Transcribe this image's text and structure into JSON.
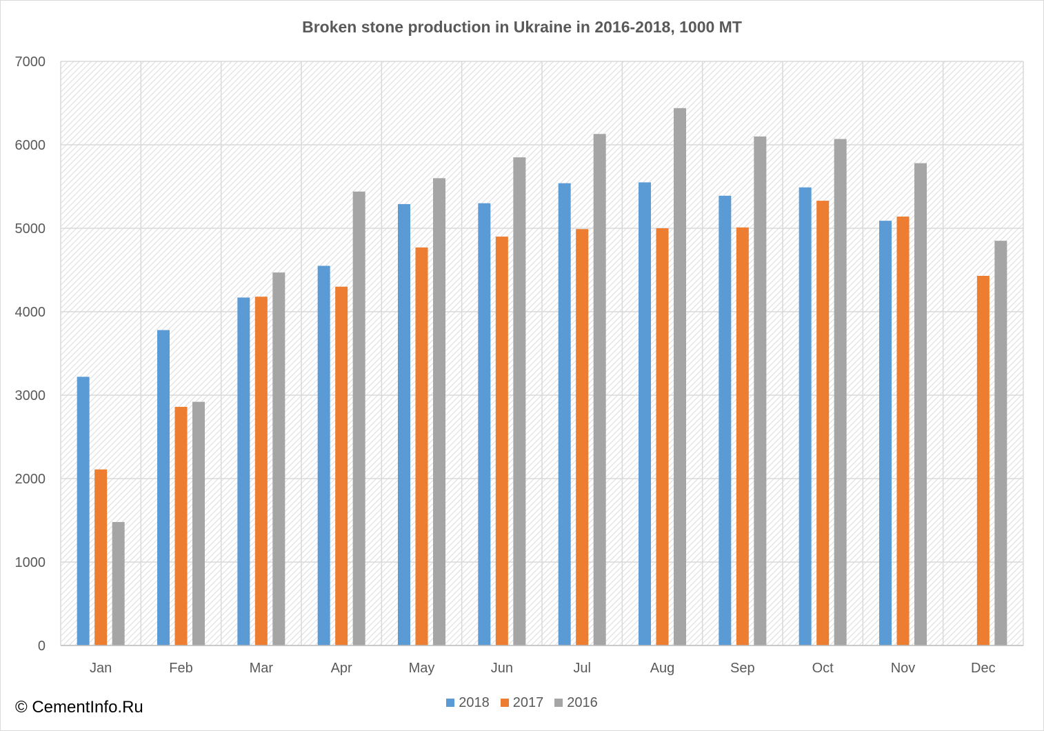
{
  "chart_data": {
    "type": "bar",
    "title": "Broken stone production in Ukraine in 2016-2018, 1000 MT",
    "xlabel": "",
    "ylabel": "",
    "ylim": [
      0,
      7000
    ],
    "yticks": [
      0,
      1000,
      2000,
      3000,
      4000,
      5000,
      6000,
      7000
    ],
    "categories": [
      "Jan",
      "Feb",
      "Mar",
      "Apr",
      "May",
      "Jun",
      "Jul",
      "Aug",
      "Sep",
      "Oct",
      "Nov",
      "Dec"
    ],
    "series": [
      {
        "name": "2018",
        "color": "#5b9bd5",
        "values": [
          3220,
          3780,
          4170,
          4550,
          5290,
          5300,
          5540,
          5550,
          5390,
          5490,
          5090,
          null
        ]
      },
      {
        "name": "2017",
        "color": "#ed7d31",
        "values": [
          2110,
          2860,
          4180,
          4300,
          4770,
          4900,
          4990,
          5000,
          5010,
          5330,
          5140,
          4430
        ]
      },
      {
        "name": "2016",
        "color": "#a5a5a5",
        "values": [
          1480,
          2920,
          4470,
          5440,
          5600,
          5850,
          6130,
          6440,
          6100,
          6070,
          5780,
          4850
        ]
      }
    ],
    "grid": true,
    "legend_position": "bottom"
  },
  "copyright": "© CementInfo.Ru"
}
